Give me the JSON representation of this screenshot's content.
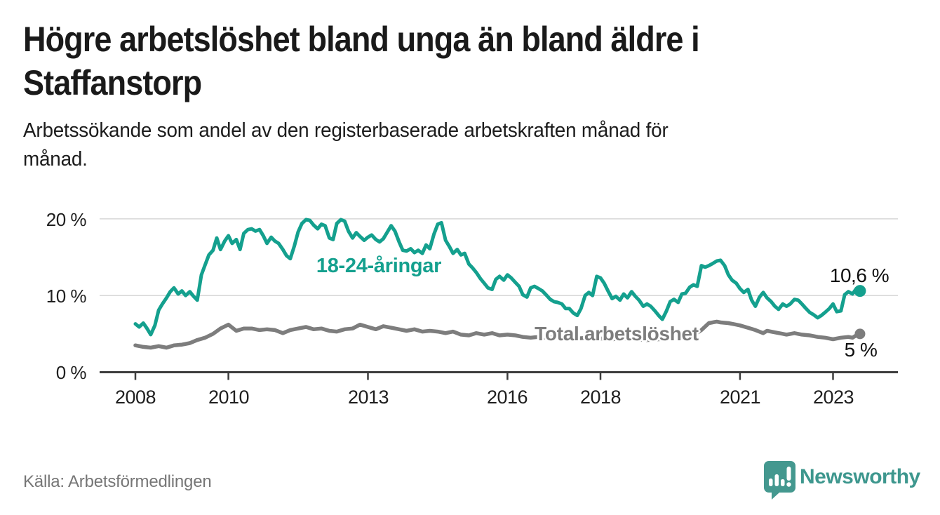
{
  "header": {
    "title_line1": "Högre arbetslöshet bland unga än bland äldre i",
    "title_line2": "Staffanstorp",
    "subtitle_line1": "Arbetssökande som andel av den registerbaserade arbetskraften månad för",
    "subtitle_line2": "månad."
  },
  "footer": {
    "source": "Källa: Arbetsförmedlingen",
    "brand_name": "Newsworthy"
  },
  "colors": {
    "accent_teal": "#14a08e",
    "series_gray": "#7d7d7d",
    "brand_teal": "#44988f",
    "grid": "#d8d8d8",
    "axis": "#3d3d3d",
    "text_dark": "#1a1a1a",
    "source_gray": "#767676"
  },
  "chart_data": {
    "type": "line",
    "title": "Högre arbetslöshet bland unga än bland äldre i Staffanstorp",
    "subtitle": "Arbetssökande som andel av den registerbaserade arbetskraften månad för månad.",
    "grid": true,
    "x_axis": {
      "ticks": [
        2008,
        2010,
        2013,
        2016,
        2018,
        2021,
        2023
      ],
      "labels": [
        "2008",
        "2010",
        "2013",
        "2016",
        "2018",
        "2021",
        "2023"
      ],
      "range": [
        2007.2,
        2024.4
      ]
    },
    "y_axis": {
      "unit": "%",
      "ticks": [
        0,
        10,
        20
      ],
      "labels": [
        "0 %",
        "10 %",
        "20 %"
      ],
      "range": [
        0,
        21.5
      ]
    },
    "series": [
      {
        "name": "Total arbetslöshet",
        "color": "#7d7d7d",
        "end_label": "5 %",
        "end_value": 5.0,
        "points": [
          [
            2008.0,
            3.5
          ],
          [
            2008.17,
            3.3
          ],
          [
            2008.33,
            3.2
          ],
          [
            2008.5,
            3.4
          ],
          [
            2008.67,
            3.2
          ],
          [
            2008.83,
            3.5
          ],
          [
            2009.0,
            3.6
          ],
          [
            2009.17,
            3.8
          ],
          [
            2009.33,
            4.2
          ],
          [
            2009.5,
            4.5
          ],
          [
            2009.67,
            5.0
          ],
          [
            2009.83,
            5.7
          ],
          [
            2010.0,
            6.2
          ],
          [
            2010.17,
            5.4
          ],
          [
            2010.33,
            5.7
          ],
          [
            2010.5,
            5.7
          ],
          [
            2010.67,
            5.5
          ],
          [
            2010.83,
            5.6
          ],
          [
            2011.0,
            5.5
          ],
          [
            2011.17,
            5.1
          ],
          [
            2011.33,
            5.5
          ],
          [
            2011.5,
            5.7
          ],
          [
            2011.67,
            5.9
          ],
          [
            2011.83,
            5.6
          ],
          [
            2012.0,
            5.7
          ],
          [
            2012.17,
            5.4
          ],
          [
            2012.33,
            5.3
          ],
          [
            2012.5,
            5.6
          ],
          [
            2012.67,
            5.7
          ],
          [
            2012.83,
            6.2
          ],
          [
            2013.0,
            5.9
          ],
          [
            2013.17,
            5.6
          ],
          [
            2013.33,
            6.0
          ],
          [
            2013.5,
            5.8
          ],
          [
            2013.67,
            5.6
          ],
          [
            2013.83,
            5.4
          ],
          [
            2014.0,
            5.6
          ],
          [
            2014.17,
            5.3
          ],
          [
            2014.33,
            5.4
          ],
          [
            2014.5,
            5.3
          ],
          [
            2014.67,
            5.1
          ],
          [
            2014.83,
            5.3
          ],
          [
            2015.0,
            4.9
          ],
          [
            2015.17,
            4.8
          ],
          [
            2015.33,
            5.1
          ],
          [
            2015.5,
            4.9
          ],
          [
            2015.67,
            5.1
          ],
          [
            2015.83,
            4.8
          ],
          [
            2016.0,
            4.9
          ],
          [
            2016.17,
            4.8
          ],
          [
            2016.33,
            4.6
          ],
          [
            2016.5,
            4.5
          ],
          [
            2016.67,
            4.6
          ],
          [
            2016.83,
            4.5
          ],
          [
            2017.0,
            4.6
          ],
          [
            2017.25,
            4.5
          ],
          [
            2017.5,
            4.4
          ],
          [
            2017.75,
            4.5
          ],
          [
            2018.0,
            4.4
          ],
          [
            2018.25,
            4.3
          ],
          [
            2018.5,
            4.4
          ],
          [
            2018.75,
            4.3
          ],
          [
            2019.0,
            4.2
          ],
          [
            2019.25,
            4.3
          ],
          [
            2019.5,
            4.4
          ],
          [
            2019.75,
            4.6
          ],
          [
            2020.0,
            4.8
          ],
          [
            2020.17,
            5.5
          ],
          [
            2020.33,
            6.4
          ],
          [
            2020.5,
            6.6
          ],
          [
            2020.58,
            6.5
          ],
          [
            2020.75,
            6.4
          ],
          [
            2020.92,
            6.2
          ],
          [
            2021.0,
            6.1
          ],
          [
            2021.17,
            5.8
          ],
          [
            2021.33,
            5.5
          ],
          [
            2021.5,
            5.1
          ],
          [
            2021.58,
            5.4
          ],
          [
            2021.75,
            5.2
          ],
          [
            2021.92,
            5.0
          ],
          [
            2022.0,
            4.9
          ],
          [
            2022.17,
            5.1
          ],
          [
            2022.33,
            4.9
          ],
          [
            2022.5,
            4.8
          ],
          [
            2022.67,
            4.6
          ],
          [
            2022.83,
            4.5
          ],
          [
            2023.0,
            4.3
          ],
          [
            2023.17,
            4.5
          ],
          [
            2023.33,
            4.6
          ],
          [
            2023.42,
            4.5
          ],
          [
            2023.5,
            4.8
          ],
          [
            2023.58,
            5.0
          ]
        ]
      },
      {
        "name": "18-24-åringar",
        "color": "#14a08e",
        "end_label": "10,6 %",
        "end_value": 10.6,
        "points": [
          [
            2008.0,
            6.3
          ],
          [
            2008.08,
            5.9
          ],
          [
            2008.17,
            6.4
          ],
          [
            2008.25,
            5.7
          ],
          [
            2008.33,
            4.9
          ],
          [
            2008.42,
            6.1
          ],
          [
            2008.5,
            8.1
          ],
          [
            2008.58,
            8.9
          ],
          [
            2008.67,
            9.7
          ],
          [
            2008.75,
            10.5
          ],
          [
            2008.83,
            11.0
          ],
          [
            2008.92,
            10.2
          ],
          [
            2009.0,
            10.6
          ],
          [
            2009.08,
            10.0
          ],
          [
            2009.17,
            10.5
          ],
          [
            2009.25,
            9.9
          ],
          [
            2009.33,
            9.4
          ],
          [
            2009.42,
            12.7
          ],
          [
            2009.5,
            14.0
          ],
          [
            2009.58,
            15.3
          ],
          [
            2009.67,
            15.9
          ],
          [
            2009.75,
            17.5
          ],
          [
            2009.83,
            16.0
          ],
          [
            2009.92,
            17.1
          ],
          [
            2010.0,
            17.8
          ],
          [
            2010.08,
            16.8
          ],
          [
            2010.17,
            17.3
          ],
          [
            2010.25,
            16.0
          ],
          [
            2010.33,
            18.1
          ],
          [
            2010.42,
            18.6
          ],
          [
            2010.5,
            18.7
          ],
          [
            2010.58,
            18.4
          ],
          [
            2010.67,
            18.6
          ],
          [
            2010.75,
            17.8
          ],
          [
            2010.83,
            16.8
          ],
          [
            2010.92,
            17.6
          ],
          [
            2011.0,
            17.1
          ],
          [
            2011.08,
            16.8
          ],
          [
            2011.17,
            16.0
          ],
          [
            2011.25,
            15.2
          ],
          [
            2011.33,
            14.8
          ],
          [
            2011.42,
            16.5
          ],
          [
            2011.5,
            18.3
          ],
          [
            2011.58,
            19.4
          ],
          [
            2011.67,
            19.9
          ],
          [
            2011.75,
            19.8
          ],
          [
            2011.83,
            19.2
          ],
          [
            2011.92,
            18.7
          ],
          [
            2012.0,
            19.3
          ],
          [
            2012.08,
            19.1
          ],
          [
            2012.17,
            17.5
          ],
          [
            2012.25,
            17.3
          ],
          [
            2012.33,
            19.4
          ],
          [
            2012.42,
            19.9
          ],
          [
            2012.5,
            19.7
          ],
          [
            2012.58,
            18.4
          ],
          [
            2012.67,
            17.5
          ],
          [
            2012.75,
            18.2
          ],
          [
            2012.83,
            17.7
          ],
          [
            2012.92,
            17.2
          ],
          [
            2013.0,
            17.6
          ],
          [
            2013.08,
            17.9
          ],
          [
            2013.17,
            17.3
          ],
          [
            2013.25,
            17.0
          ],
          [
            2013.33,
            17.4
          ],
          [
            2013.42,
            18.3
          ],
          [
            2013.5,
            19.1
          ],
          [
            2013.58,
            18.4
          ],
          [
            2013.67,
            17.0
          ],
          [
            2013.75,
            15.9
          ],
          [
            2013.83,
            15.8
          ],
          [
            2013.92,
            16.1
          ],
          [
            2014.0,
            15.6
          ],
          [
            2014.08,
            15.9
          ],
          [
            2014.17,
            15.5
          ],
          [
            2014.25,
            16.6
          ],
          [
            2014.33,
            16.1
          ],
          [
            2014.42,
            18.0
          ],
          [
            2014.5,
            19.3
          ],
          [
            2014.58,
            19.5
          ],
          [
            2014.67,
            17.2
          ],
          [
            2014.75,
            16.4
          ],
          [
            2014.83,
            15.5
          ],
          [
            2014.92,
            16.0
          ],
          [
            2015.0,
            15.3
          ],
          [
            2015.08,
            15.5
          ],
          [
            2015.17,
            14.1
          ],
          [
            2015.25,
            13.6
          ],
          [
            2015.33,
            13.0
          ],
          [
            2015.42,
            12.2
          ],
          [
            2015.5,
            11.6
          ],
          [
            2015.58,
            11.0
          ],
          [
            2015.67,
            10.8
          ],
          [
            2015.75,
            12.1
          ],
          [
            2015.83,
            12.5
          ],
          [
            2015.92,
            12.0
          ],
          [
            2016.0,
            12.7
          ],
          [
            2016.08,
            12.3
          ],
          [
            2016.17,
            11.7
          ],
          [
            2016.25,
            11.2
          ],
          [
            2016.33,
            10.1
          ],
          [
            2016.42,
            9.8
          ],
          [
            2016.5,
            11.0
          ],
          [
            2016.58,
            11.2
          ],
          [
            2016.67,
            10.9
          ],
          [
            2016.75,
            10.6
          ],
          [
            2016.83,
            10.1
          ],
          [
            2016.92,
            9.5
          ],
          [
            2017.0,
            9.2
          ],
          [
            2017.08,
            9.1
          ],
          [
            2017.17,
            8.9
          ],
          [
            2017.25,
            8.3
          ],
          [
            2017.33,
            8.3
          ],
          [
            2017.42,
            7.7
          ],
          [
            2017.5,
            7.4
          ],
          [
            2017.58,
            8.3
          ],
          [
            2017.67,
            10.0
          ],
          [
            2017.75,
            10.4
          ],
          [
            2017.83,
            10.0
          ],
          [
            2017.92,
            12.5
          ],
          [
            2018.0,
            12.3
          ],
          [
            2018.08,
            11.6
          ],
          [
            2018.17,
            10.5
          ],
          [
            2018.25,
            9.6
          ],
          [
            2018.33,
            9.9
          ],
          [
            2018.42,
            9.4
          ],
          [
            2018.5,
            10.2
          ],
          [
            2018.58,
            9.7
          ],
          [
            2018.67,
            10.5
          ],
          [
            2018.75,
            9.9
          ],
          [
            2018.83,
            9.4
          ],
          [
            2018.92,
            8.6
          ],
          [
            2019.0,
            8.9
          ],
          [
            2019.08,
            8.6
          ],
          [
            2019.17,
            8.0
          ],
          [
            2019.25,
            7.4
          ],
          [
            2019.33,
            6.9
          ],
          [
            2019.42,
            8.0
          ],
          [
            2019.5,
            9.2
          ],
          [
            2019.58,
            9.5
          ],
          [
            2019.67,
            9.1
          ],
          [
            2019.75,
            10.2
          ],
          [
            2019.83,
            10.3
          ],
          [
            2019.92,
            11.1
          ],
          [
            2020.0,
            11.4
          ],
          [
            2020.08,
            11.2
          ],
          [
            2020.17,
            13.9
          ],
          [
            2020.25,
            13.7
          ],
          [
            2020.33,
            13.9
          ],
          [
            2020.42,
            14.2
          ],
          [
            2020.5,
            14.5
          ],
          [
            2020.58,
            14.6
          ],
          [
            2020.67,
            13.9
          ],
          [
            2020.75,
            12.7
          ],
          [
            2020.83,
            12.0
          ],
          [
            2020.92,
            11.6
          ],
          [
            2021.0,
            10.9
          ],
          [
            2021.08,
            10.4
          ],
          [
            2021.17,
            10.8
          ],
          [
            2021.25,
            9.4
          ],
          [
            2021.33,
            8.6
          ],
          [
            2021.42,
            9.8
          ],
          [
            2021.5,
            10.4
          ],
          [
            2021.58,
            9.7
          ],
          [
            2021.67,
            9.2
          ],
          [
            2021.75,
            8.6
          ],
          [
            2021.83,
            8.2
          ],
          [
            2021.92,
            8.9
          ],
          [
            2022.0,
            8.6
          ],
          [
            2022.08,
            8.9
          ],
          [
            2022.17,
            9.5
          ],
          [
            2022.25,
            9.4
          ],
          [
            2022.33,
            8.9
          ],
          [
            2022.42,
            8.3
          ],
          [
            2022.5,
            7.8
          ],
          [
            2022.58,
            7.5
          ],
          [
            2022.67,
            7.1
          ],
          [
            2022.75,
            7.4
          ],
          [
            2022.83,
            7.8
          ],
          [
            2022.92,
            8.3
          ],
          [
            2023.0,
            8.9
          ],
          [
            2023.08,
            7.9
          ],
          [
            2023.17,
            8.0
          ],
          [
            2023.25,
            10.1
          ],
          [
            2023.33,
            10.5
          ],
          [
            2023.42,
            10.2
          ],
          [
            2023.5,
            10.9
          ],
          [
            2023.58,
            10.6
          ]
        ]
      }
    ]
  }
}
